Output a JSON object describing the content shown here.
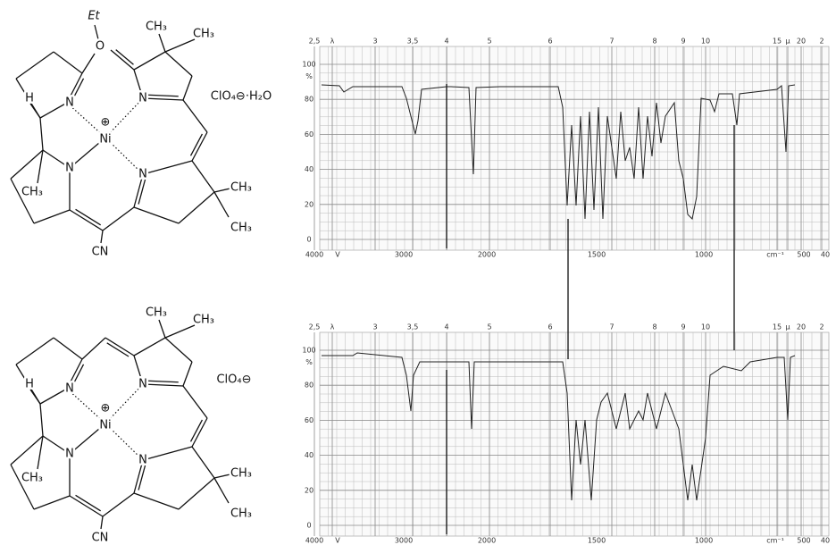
{
  "structures": [
    {
      "labels": [
        "Et",
        "O",
        "CH₃",
        "CH₃",
        "H",
        "N",
        "N",
        "⊕",
        "Ni",
        "N",
        "N",
        "CH₃",
        "CH₃",
        "CH₃",
        "CN",
        "ClO₄⊖·H₂O"
      ]
    },
    {
      "labels": [
        "CH₃",
        "CH₃",
        "H",
        "N",
        "N",
        "⊕",
        "Ni",
        "N",
        "N",
        "CH₃",
        "CH₃",
        "CH₃",
        "CN",
        "ClO₄⊖"
      ]
    }
  ],
  "spectra": [
    {
      "top_axis": [
        "2,5",
        "λ",
        "3",
        "3,5",
        "4",
        "5",
        "6",
        "7",
        "8",
        "9",
        "10",
        "15",
        "μ",
        "20",
        "2"
      ],
      "bottom_axis": [
        "4000",
        "V",
        "3000",
        "2000",
        "1500",
        "1000",
        "cm⁻¹",
        "500",
        "40"
      ],
      "y_axis": [
        "100",
        "%",
        "80",
        "60",
        "40",
        "20",
        "0"
      ]
    },
    {
      "top_axis": [
        "2,5",
        "λ",
        "3",
        "3,5",
        "4",
        "5",
        "6",
        "7",
        "8",
        "9",
        "10",
        "15",
        "μ",
        "20",
        "2"
      ],
      "bottom_axis": [
        "4000",
        "V",
        "3000",
        "2000",
        "1500",
        "1000",
        "cm⁻¹",
        "500",
        "40"
      ],
      "y_axis": [
        "100",
        "%",
        "80",
        "60",
        "40",
        "20",
        "0"
      ]
    }
  ]
}
